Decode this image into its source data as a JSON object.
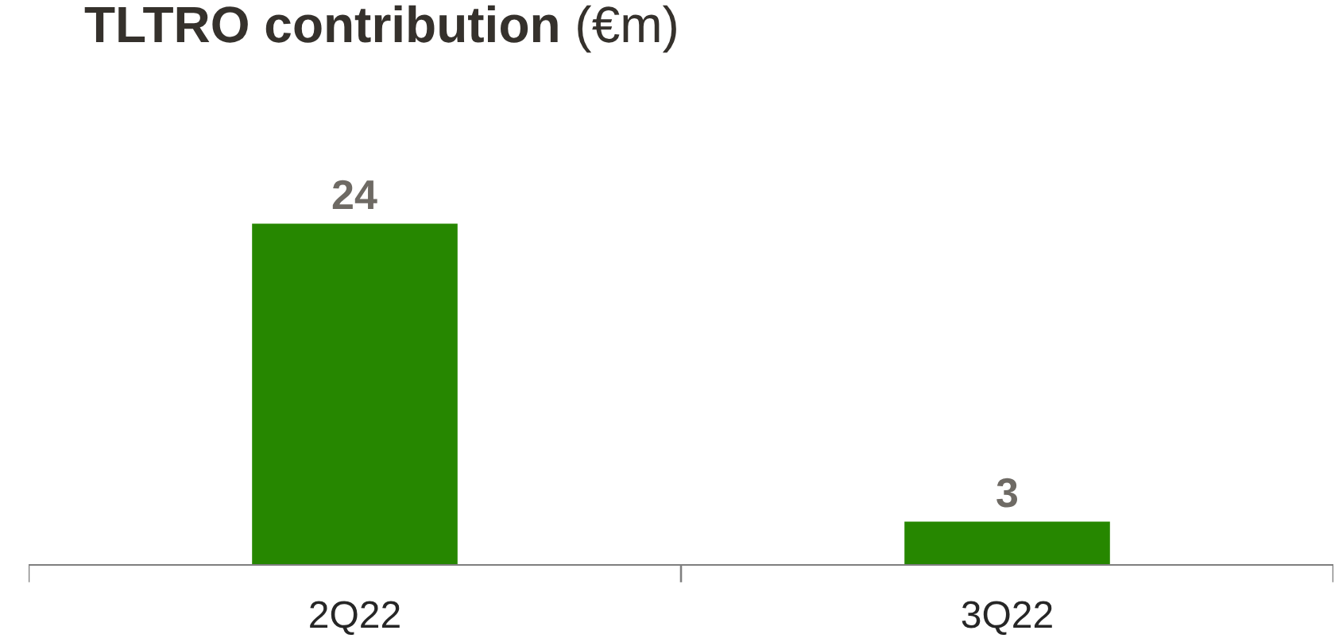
{
  "chart_data": {
    "type": "bar",
    "title": "TLTRO contribution (€m)",
    "categories": [
      "2Q22",
      "3Q22"
    ],
    "values": [
      24,
      3
    ],
    "color": "#268700",
    "data_labels": true
  }
}
